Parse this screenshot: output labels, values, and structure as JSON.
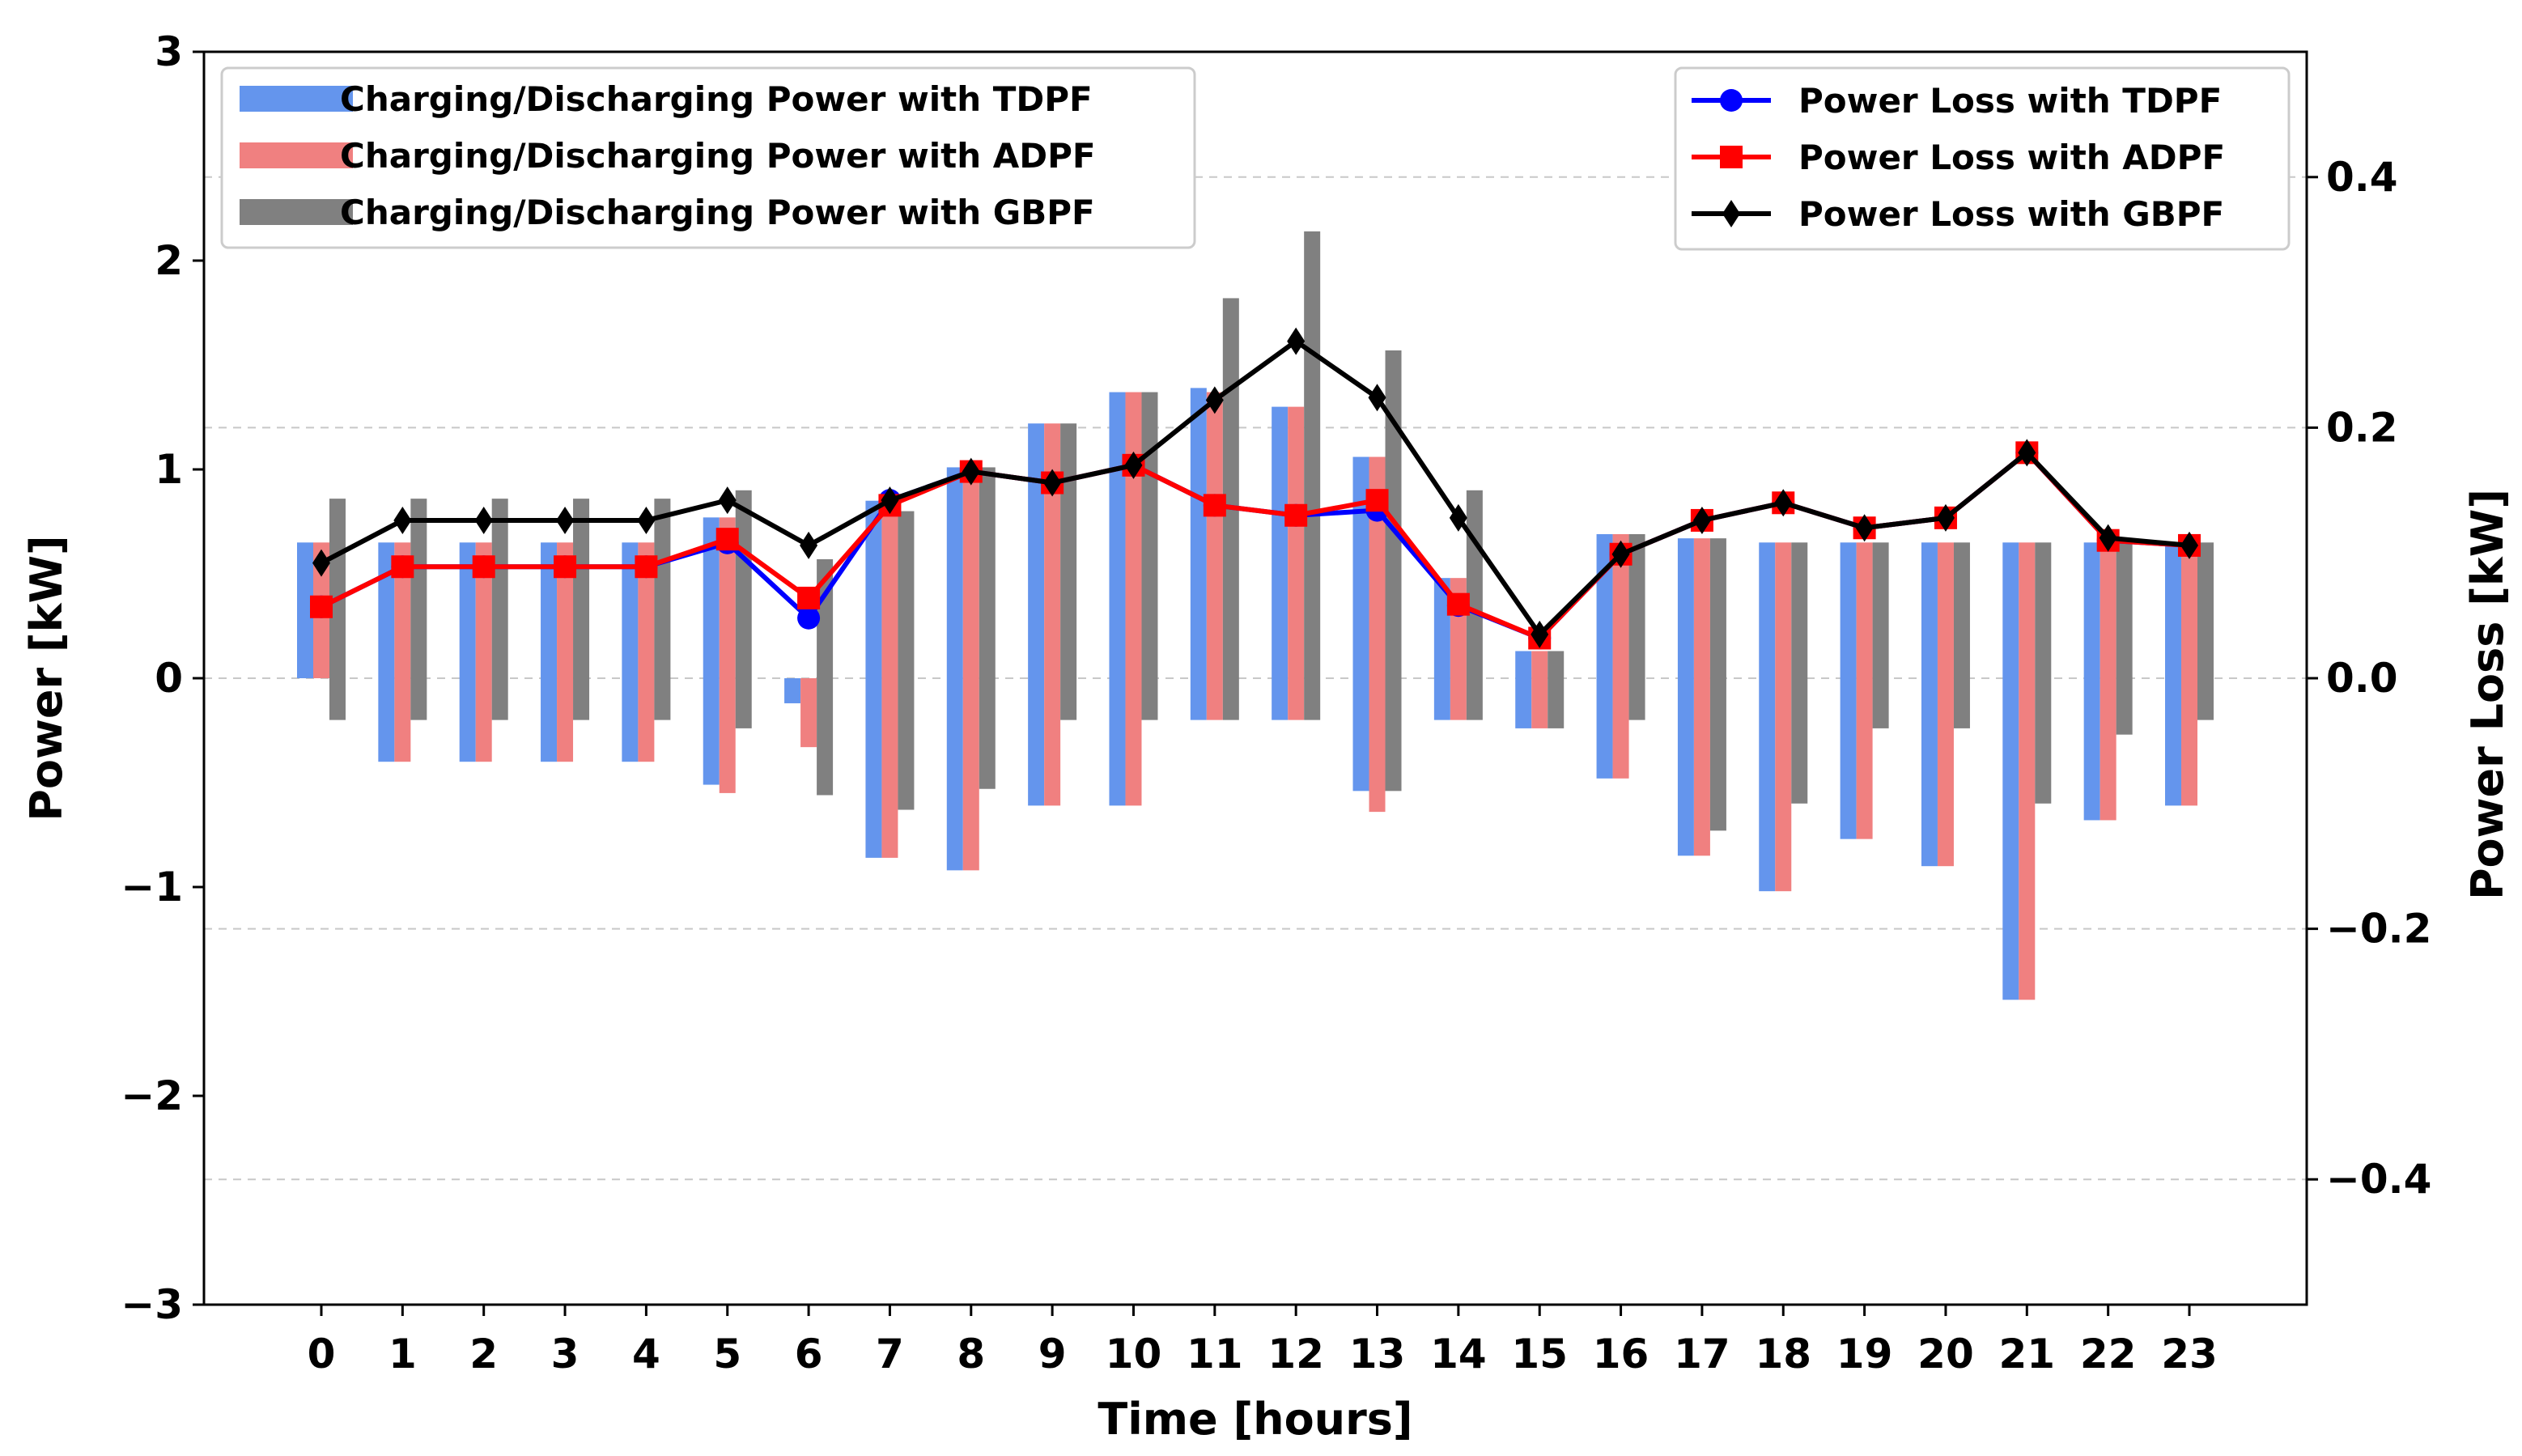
{
  "chart_data": {
    "type": "bar+line",
    "xlabel": "Time [hours]",
    "ylabel_left": "Power [kW]",
    "ylabel_right": "Power Loss [kW]",
    "categories": [
      "0",
      "1",
      "2",
      "3",
      "4",
      "5",
      "6",
      "7",
      "8",
      "9",
      "10",
      "11",
      "12",
      "13",
      "14",
      "15",
      "16",
      "17",
      "18",
      "19",
      "20",
      "21",
      "22",
      "23"
    ],
    "ylim_left": [
      -3,
      3
    ],
    "yticks_left": [
      {
        "value": 3,
        "label": "3"
      },
      {
        "value": 2,
        "label": "2"
      },
      {
        "value": 1,
        "label": "1"
      },
      {
        "value": 0,
        "label": "0"
      },
      {
        "value": -1,
        "label": "−1"
      },
      {
        "value": -2,
        "label": "−2"
      },
      {
        "value": -3,
        "label": "−3"
      }
    ],
    "ylim_right": [
      -0.5,
      0.5
    ],
    "yticks_right": [
      {
        "value": 0.4,
        "label": "0.4"
      },
      {
        "value": 0.2,
        "label": "0.2"
      },
      {
        "value": 0.0,
        "label": "0.0"
      },
      {
        "value": -0.2,
        "label": "−0.2"
      },
      {
        "value": -0.4,
        "label": "−0.4"
      }
    ],
    "grid": "horizontal dashed at right-axis ticks",
    "bar_series": [
      {
        "name": "Charging/Discharging Power with TDPF",
        "color": "#6495ED",
        "values": [
          [
            0,
            0.65
          ],
          [
            -0.4,
            0.65
          ],
          [
            -0.4,
            0.65
          ],
          [
            -0.4,
            0.65
          ],
          [
            -0.4,
            0.65
          ],
          [
            -0.51,
            0.77
          ],
          [
            -0.12,
            0.0
          ],
          [
            -0.86,
            0.85
          ],
          [
            -0.92,
            1.01
          ],
          [
            -0.61,
            1.22
          ],
          [
            -0.61,
            1.37
          ],
          [
            -0.2,
            1.39
          ],
          [
            -0.2,
            1.3
          ],
          [
            -0.54,
            1.06
          ],
          [
            -0.2,
            0.48
          ],
          [
            -0.24,
            0.13
          ],
          [
            -0.48,
            0.69
          ],
          [
            -0.85,
            0.67
          ],
          [
            -1.02,
            0.65
          ],
          [
            -0.77,
            0.65
          ],
          [
            -0.9,
            0.65
          ],
          [
            -1.54,
            0.65
          ],
          [
            -0.68,
            0.65
          ],
          [
            -0.61,
            0.65
          ]
        ]
      },
      {
        "name": "Charging/Discharging Power with ADPF",
        "color": "#F08080",
        "values": [
          [
            0,
            0.65
          ],
          [
            -0.4,
            0.65
          ],
          [
            -0.4,
            0.65
          ],
          [
            -0.4,
            0.65
          ],
          [
            -0.4,
            0.65
          ],
          [
            -0.55,
            0.77
          ],
          [
            -0.33,
            0.0
          ],
          [
            -0.86,
            0.85
          ],
          [
            -0.92,
            1.01
          ],
          [
            -0.61,
            1.22
          ],
          [
            -0.61,
            1.37
          ],
          [
            -0.2,
            1.37
          ],
          [
            -0.2,
            1.3
          ],
          [
            -0.64,
            1.06
          ],
          [
            -0.2,
            0.48
          ],
          [
            -0.24,
            0.13
          ],
          [
            -0.48,
            0.69
          ],
          [
            -0.85,
            0.67
          ],
          [
            -1.02,
            0.65
          ],
          [
            -0.77,
            0.65
          ],
          [
            -0.9,
            0.65
          ],
          [
            -1.54,
            0.65
          ],
          [
            -0.68,
            0.65
          ],
          [
            -0.61,
            0.65
          ]
        ]
      },
      {
        "name": "Charging/Discharging Power with GBPF",
        "color": "#808080",
        "values": [
          [
            -0.2,
            0.86
          ],
          [
            -0.2,
            0.86
          ],
          [
            -0.2,
            0.86
          ],
          [
            -0.2,
            0.86
          ],
          [
            -0.2,
            0.86
          ],
          [
            -0.24,
            0.9
          ],
          [
            -0.56,
            0.57
          ],
          [
            -0.63,
            0.8
          ],
          [
            -0.53,
            1.01
          ],
          [
            -0.2,
            1.22
          ],
          [
            -0.2,
            1.37
          ],
          [
            -0.2,
            1.82
          ],
          [
            -0.2,
            2.14
          ],
          [
            -0.54,
            1.57
          ],
          [
            -0.2,
            0.9
          ],
          [
            -0.24,
            0.13
          ],
          [
            -0.2,
            0.69
          ],
          [
            -0.73,
            0.67
          ],
          [
            -0.6,
            0.65
          ],
          [
            -0.24,
            0.65
          ],
          [
            -0.24,
            0.65
          ],
          [
            -0.6,
            0.65
          ],
          [
            -0.27,
            0.65
          ],
          [
            -0.2,
            0.65
          ]
        ]
      }
    ],
    "line_series": [
      {
        "name": "Power Loss with TDPF",
        "color": "#0000FF",
        "marker": "circle",
        "values": [
          0.057,
          0.089,
          0.089,
          0.089,
          0.089,
          0.108,
          0.048,
          0.142,
          0.165,
          0.156,
          0.17,
          0.138,
          0.13,
          0.134,
          0.058,
          0.032,
          0.099,
          0.126,
          0.14,
          0.12,
          0.128,
          0.18,
          0.11,
          0.106
        ]
      },
      {
        "name": "Power Loss with ADPF",
        "color": "#FF0000",
        "marker": "square",
        "values": [
          0.057,
          0.089,
          0.089,
          0.089,
          0.089,
          0.111,
          0.064,
          0.138,
          0.165,
          0.156,
          0.17,
          0.138,
          0.13,
          0.142,
          0.059,
          0.032,
          0.099,
          0.126,
          0.14,
          0.12,
          0.128,
          0.18,
          0.11,
          0.106
        ]
      },
      {
        "name": "Power Loss with GBPF",
        "color": "#000000",
        "marker": "diamond",
        "values": [
          0.092,
          0.126,
          0.126,
          0.126,
          0.126,
          0.142,
          0.106,
          0.142,
          0.165,
          0.156,
          0.17,
          0.222,
          0.269,
          0.224,
          0.128,
          0.035,
          0.099,
          0.126,
          0.14,
          0.12,
          0.128,
          0.18,
          0.112,
          0.106
        ]
      }
    ],
    "legend_left_placement": "top-left",
    "legend_right_placement": "top-right"
  }
}
